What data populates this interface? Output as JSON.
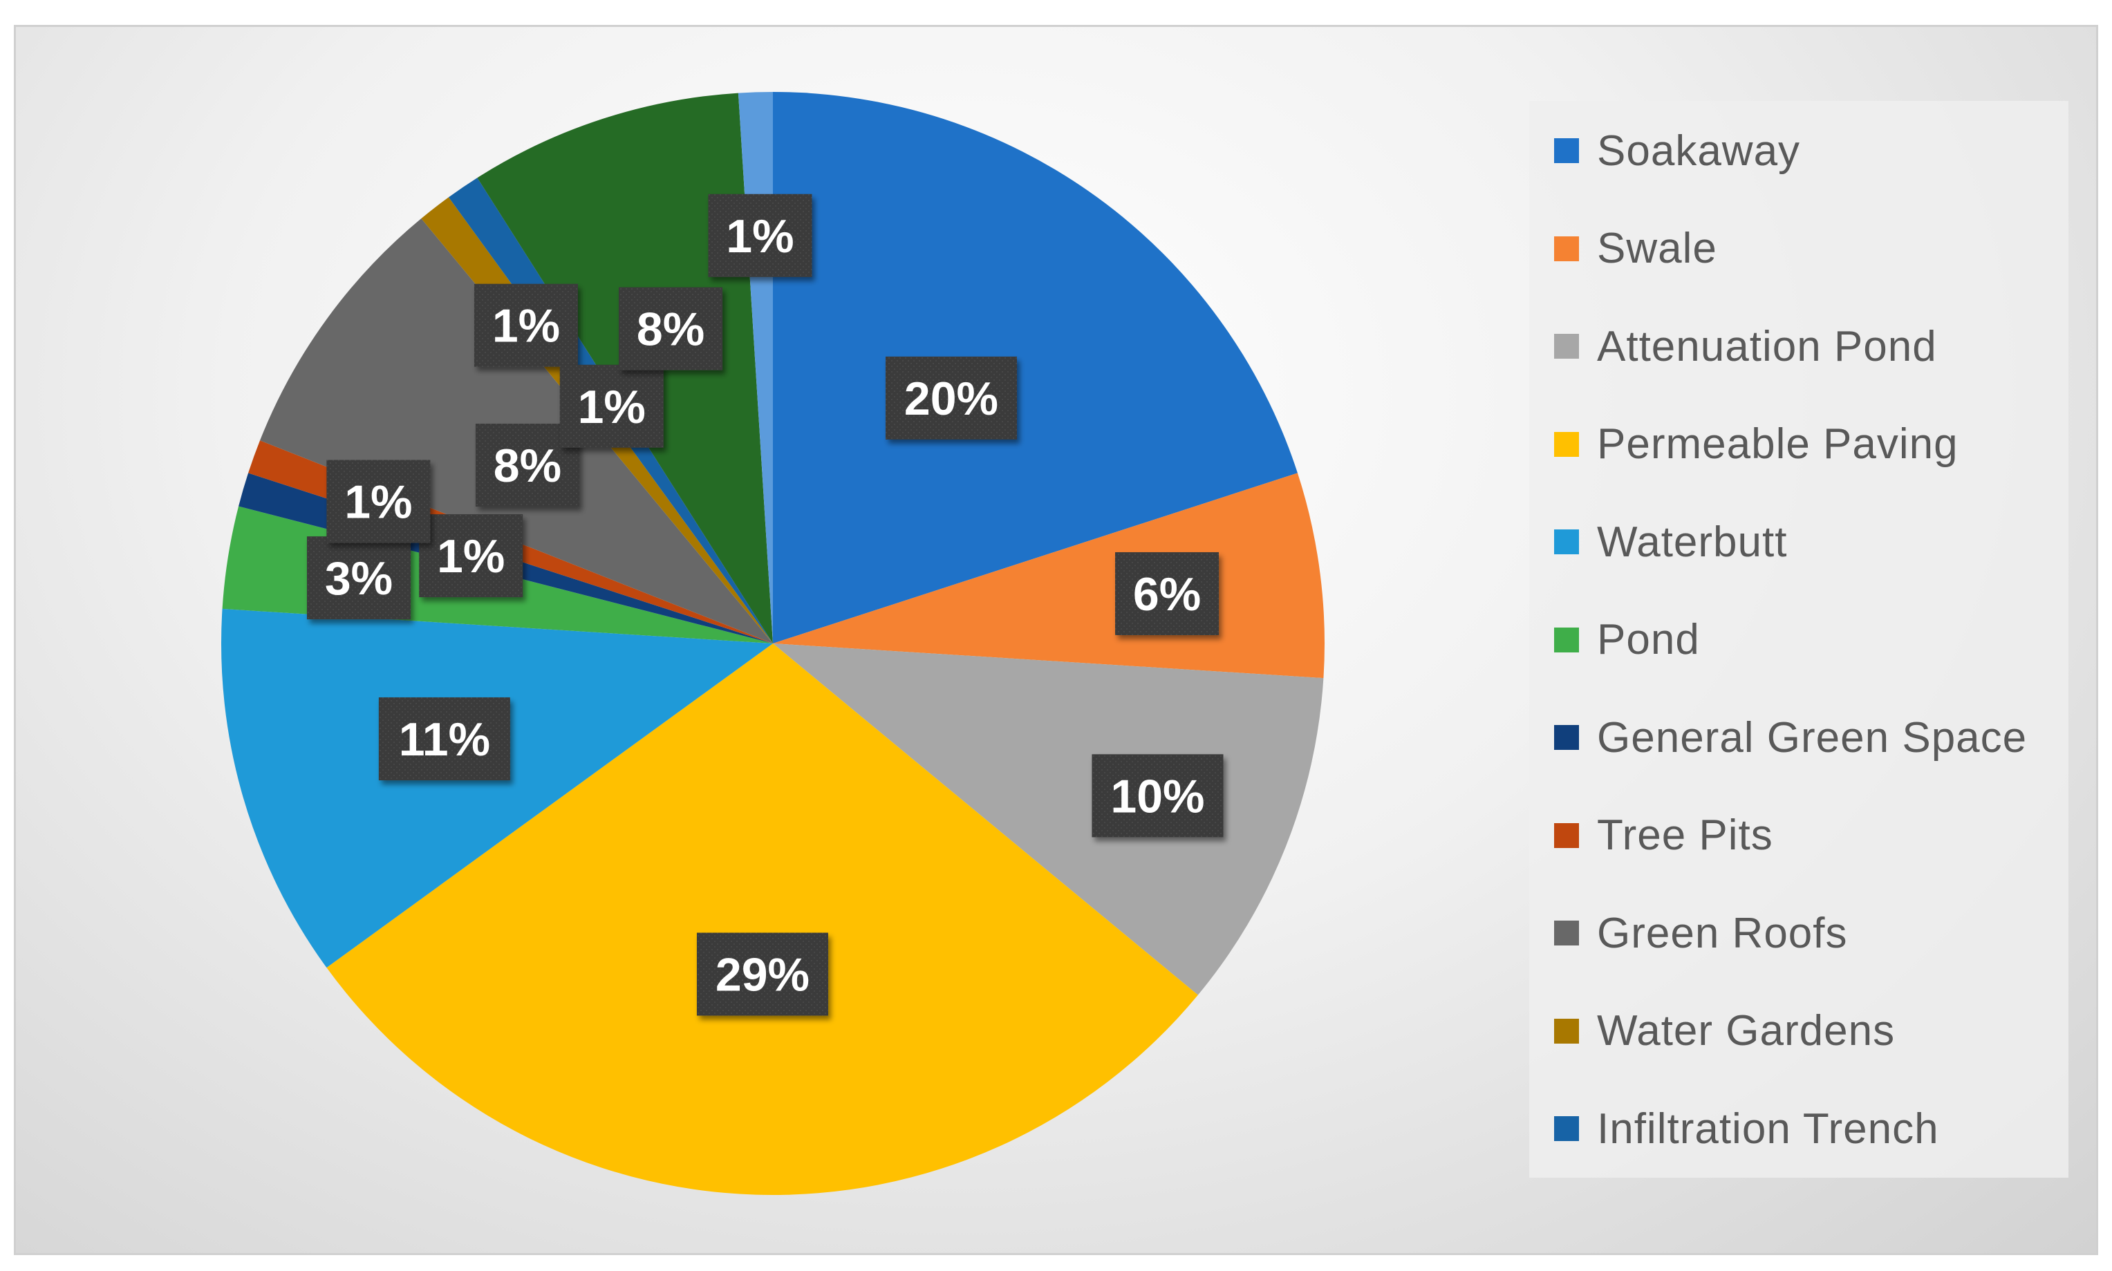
{
  "chart_data": {
    "type": "pie",
    "title": "",
    "slices": [
      {
        "label": "Soakaway",
        "value": 20,
        "display": "20%",
        "color": "#1f72c8"
      },
      {
        "label": "Swale",
        "value": 6,
        "display": "6%",
        "color": "#f58232"
      },
      {
        "label": "Attenuation Pond",
        "value": 10,
        "display": "10%",
        "color": "#a7a7a7"
      },
      {
        "label": "Permeable Paving",
        "value": 29,
        "display": "29%",
        "color": "#ffc000"
      },
      {
        "label": "Waterbutt",
        "value": 11,
        "display": "11%",
        "color": "#1f9ad8"
      },
      {
        "label": "Pond",
        "value": 3,
        "display": "3%",
        "color": "#3fae49"
      },
      {
        "label": "General Green Space",
        "value": 1,
        "display": "1%",
        "color": "#103f7c"
      },
      {
        "label": "Tree Pits",
        "value": 1,
        "display": "1%",
        "color": "#c0470e"
      },
      {
        "label": "Green Roofs",
        "value": 8,
        "display": "8%",
        "color": "#686868"
      },
      {
        "label": "Water Gardens",
        "value": 1,
        "display": "1%",
        "color": "#a87800"
      },
      {
        "label": "Infiltration Trench",
        "value": 1,
        "display": "1%",
        "color": "#1763a6"
      },
      {
        "label": "",
        "value": 8,
        "display": "8%",
        "color": "#256b25"
      },
      {
        "label": "",
        "value": 1,
        "display": "1%",
        "color": "#5b9bdc"
      }
    ],
    "legend_position": "right"
  }
}
